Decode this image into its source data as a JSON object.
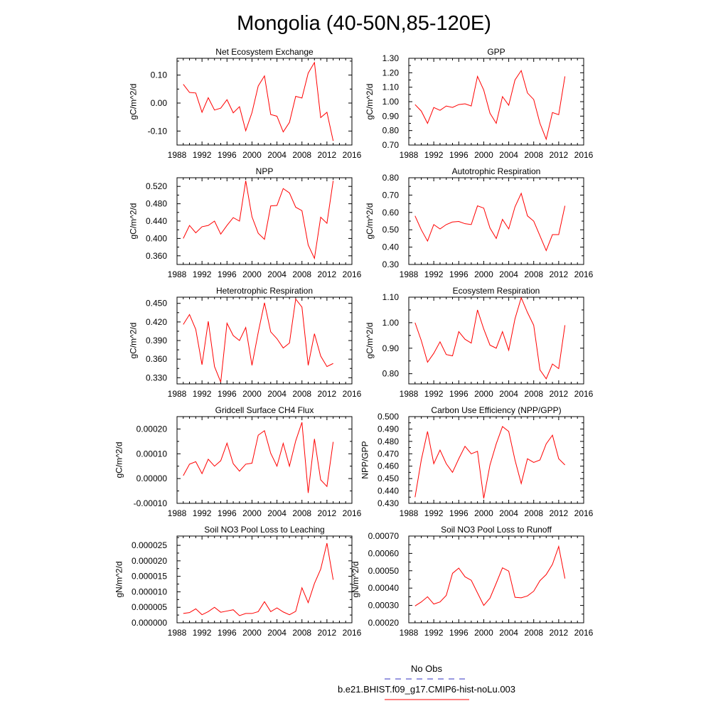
{
  "figure": {
    "title": "Mongolia (40-50N,85-120E)",
    "legend": [
      {
        "label": "No Obs",
        "color": "#3030c0",
        "dash": true
      },
      {
        "label": "b.e21.BHIST.f09_g17.CMIP6-hist-noLu.003",
        "color": "#ff0000",
        "dash": false
      }
    ]
  },
  "chart_data": [
    {
      "type": "line",
      "title": "Net Ecosystem Exchange",
      "ylabel": "gC/m^2/d",
      "xlim": [
        1988,
        2016
      ],
      "xticks": [
        "1988",
        "1992",
        "1996",
        "2000",
        "2004",
        "2008",
        "2012",
        "2016"
      ],
      "ylim": [
        -0.15,
        0.16
      ],
      "yticks": [
        "-0.10",
        "0.00",
        "0.10"
      ],
      "ytick_values": [
        -0.1,
        0.0,
        0.1
      ],
      "series": [
        {
          "color": "#ff0000",
          "x": [
            1989,
            1990,
            1991,
            1992,
            1993,
            1994,
            1995,
            1996,
            1997,
            1998,
            1999,
            2000,
            2001,
            2002,
            2003,
            2004,
            2005,
            2006,
            2007,
            2008,
            2009,
            2010,
            2011,
            2012,
            2013
          ],
          "values": [
            0.067,
            0.038,
            0.036,
            -0.033,
            0.019,
            -0.025,
            -0.018,
            0.012,
            -0.035,
            -0.013,
            -0.099,
            -0.034,
            0.061,
            0.097,
            -0.041,
            -0.047,
            -0.103,
            -0.069,
            0.024,
            0.018,
            0.107,
            0.145,
            -0.052,
            -0.033,
            -0.135
          ]
        }
      ]
    },
    {
      "type": "line",
      "title": "GPP",
      "ylabel": "gC/m^2/d",
      "xlim": [
        1988,
        2016
      ],
      "xticks": [
        "1988",
        "1992",
        "1996",
        "2000",
        "2004",
        "2008",
        "2012",
        "2016"
      ],
      "ylim": [
        0.7,
        1.3
      ],
      "yticks": [
        "0.70",
        "0.80",
        "0.90",
        "1.00",
        "1.10",
        "1.20",
        "1.30"
      ],
      "ytick_values": [
        0.7,
        0.8,
        0.9,
        1.0,
        1.1,
        1.2,
        1.3
      ],
      "series": [
        {
          "color": "#ff0000",
          "x": [
            1989,
            1990,
            1991,
            1992,
            1993,
            1994,
            1995,
            1996,
            1997,
            1998,
            1999,
            2000,
            2001,
            2002,
            2003,
            2004,
            2005,
            2006,
            2007,
            2008,
            2009,
            2010,
            2011,
            2012,
            2013
          ],
          "values": [
            0.98,
            0.935,
            0.85,
            0.96,
            0.94,
            0.97,
            0.96,
            0.98,
            0.985,
            0.97,
            1.175,
            1.08,
            0.92,
            0.85,
            1.035,
            0.975,
            1.15,
            1.215,
            1.06,
            1.015,
            0.85,
            0.74,
            0.925,
            0.91,
            1.175
          ]
        }
      ]
    },
    {
      "type": "line",
      "title": "NPP",
      "ylabel": "gC/m^2/d",
      "xlim": [
        1988,
        2016
      ],
      "xticks": [
        "1988",
        "1992",
        "1996",
        "2000",
        "2004",
        "2008",
        "2012",
        "2016"
      ],
      "ylim": [
        0.34,
        0.54
      ],
      "yticks": [
        "0.360",
        "0.400",
        "0.440",
        "0.480",
        "0.520"
      ],
      "ytick_values": [
        0.36,
        0.4,
        0.44,
        0.48,
        0.52
      ],
      "series": [
        {
          "color": "#ff0000",
          "x": [
            1989,
            1990,
            1991,
            1992,
            1993,
            1994,
            1995,
            1996,
            1997,
            1998,
            1999,
            2000,
            2001,
            2002,
            2003,
            2004,
            2005,
            2006,
            2007,
            2008,
            2009,
            2010,
            2011,
            2012,
            2013
          ],
          "values": [
            0.4,
            0.43,
            0.413,
            0.427,
            0.43,
            0.44,
            0.41,
            0.43,
            0.448,
            0.44,
            0.533,
            0.45,
            0.412,
            0.398,
            0.475,
            0.476,
            0.515,
            0.505,
            0.472,
            0.464,
            0.385,
            0.354,
            0.449,
            0.435,
            0.533
          ]
        }
      ]
    },
    {
      "type": "line",
      "title": "Autotrophic Respiration",
      "ylabel": "gC/m^2/d",
      "xlim": [
        1988,
        2016
      ],
      "xticks": [
        "1988",
        "1992",
        "1996",
        "2000",
        "2004",
        "2008",
        "2012",
        "2016"
      ],
      "ylim": [
        0.3,
        0.8
      ],
      "yticks": [
        "0.30",
        "0.40",
        "0.50",
        "0.60",
        "0.70",
        "0.80"
      ],
      "ytick_values": [
        0.3,
        0.4,
        0.5,
        0.6,
        0.7,
        0.8
      ],
      "series": [
        {
          "color": "#ff0000",
          "x": [
            1989,
            1990,
            1991,
            1992,
            1993,
            1994,
            1995,
            1996,
            1997,
            1998,
            1999,
            2000,
            2001,
            2002,
            2003,
            2004,
            2005,
            2006,
            2007,
            2008,
            2009,
            2010,
            2011,
            2012,
            2013
          ],
          "values": [
            0.58,
            0.5,
            0.435,
            0.53,
            0.505,
            0.53,
            0.545,
            0.548,
            0.535,
            0.53,
            0.638,
            0.625,
            0.51,
            0.45,
            0.56,
            0.505,
            0.632,
            0.71,
            0.58,
            0.55,
            0.465,
            0.38,
            0.472,
            0.472,
            0.638
          ]
        }
      ]
    },
    {
      "type": "line",
      "title": "Heterotrophic Respiration",
      "ylabel": "gC/m^2/d",
      "xlim": [
        1988,
        2016
      ],
      "xticks": [
        "1988",
        "1992",
        "1996",
        "2000",
        "2004",
        "2008",
        "2012",
        "2016"
      ],
      "ylim": [
        0.32,
        0.46
      ],
      "yticks": [
        "0.330",
        "0.360",
        "0.390",
        "0.420",
        "0.450"
      ],
      "ytick_values": [
        0.33,
        0.36,
        0.39,
        0.42,
        0.45
      ],
      "series": [
        {
          "color": "#ff0000",
          "x": [
            1989,
            1990,
            1991,
            1992,
            1993,
            1994,
            1995,
            1996,
            1997,
            1998,
            1999,
            2000,
            2001,
            2002,
            2003,
            2004,
            2005,
            2006,
            2007,
            2008,
            2009,
            2010,
            2011,
            2012,
            2013
          ],
          "values": [
            0.416,
            0.432,
            0.408,
            0.351,
            0.421,
            0.348,
            0.323,
            0.418,
            0.398,
            0.39,
            0.411,
            0.35,
            0.403,
            0.451,
            0.404,
            0.393,
            0.378,
            0.386,
            0.457,
            0.444,
            0.35,
            0.401,
            0.365,
            0.348,
            0.353
          ]
        }
      ]
    },
    {
      "type": "line",
      "title": "Ecosystem Respiration",
      "ylabel": "gC/m^2/d",
      "xlim": [
        1988,
        2016
      ],
      "xticks": [
        "1988",
        "1992",
        "1996",
        "2000",
        "2004",
        "2008",
        "2012",
        "2016"
      ],
      "ylim": [
        0.76,
        1.1
      ],
      "yticks": [
        "0.80",
        "0.90",
        "1.00",
        "1.10"
      ],
      "ytick_values": [
        0.8,
        0.9,
        1.0,
        1.1
      ],
      "series": [
        {
          "color": "#ff0000",
          "x": [
            1989,
            1990,
            1991,
            1992,
            1993,
            1994,
            1995,
            1996,
            1997,
            1998,
            1999,
            2000,
            2001,
            2002,
            2003,
            2004,
            2005,
            2006,
            2007,
            2008,
            2009,
            2010,
            2011,
            2012,
            2013
          ],
          "values": [
            1.0,
            0.93,
            0.845,
            0.88,
            0.925,
            0.875,
            0.87,
            0.965,
            0.935,
            0.92,
            1.05,
            0.975,
            0.912,
            0.9,
            0.965,
            0.892,
            1.015,
            1.098,
            1.04,
            0.99,
            0.815,
            0.78,
            0.838,
            0.82,
            0.99
          ]
        }
      ]
    },
    {
      "type": "line",
      "title": "Gridcell Surface CH4 Flux",
      "ylabel": "gC/m^2/d",
      "xlim": [
        1988,
        2016
      ],
      "xticks": [
        "1988",
        "1992",
        "1996",
        "2000",
        "2004",
        "2008",
        "2012",
        "2016"
      ],
      "ylim": [
        -0.0001,
        0.00025
      ],
      "yticks": [
        "-0.00010",
        "0.00000",
        "0.00010",
        "0.00020"
      ],
      "ytick_values": [
        -0.0001,
        0.0,
        0.0001,
        0.0002
      ],
      "series": [
        {
          "color": "#ff0000",
          "x": [
            1989,
            1990,
            1991,
            1992,
            1993,
            1994,
            1995,
            1996,
            1997,
            1998,
            1999,
            2000,
            2001,
            2002,
            2003,
            2004,
            2005,
            2006,
            2007,
            2008,
            2009,
            2010,
            2011,
            2012,
            2013
          ],
          "values": [
            1.2e-05,
            5.8e-05,
            6.8e-05,
            2e-05,
            7.8e-05,
            5e-05,
            7.2e-05,
            0.000143,
            6e-05,
            3e-05,
            5.8e-05,
            6.2e-05,
            0.000175,
            0.000193,
            0.000102,
            5e-05,
            0.000142,
            5e-05,
            0.000152,
            0.000227,
            -5.8e-05,
            0.00016,
            -5e-06,
            -3.2e-05,
            0.000148
          ]
        }
      ]
    },
    {
      "type": "line",
      "title": "Carbon Use Efficiency (NPP/GPP)",
      "ylabel": "NPP/GPP",
      "xlim": [
        1988,
        2016
      ],
      "xticks": [
        "1988",
        "1992",
        "1996",
        "2000",
        "2004",
        "2008",
        "2012",
        "2016"
      ],
      "ylim": [
        0.43,
        0.5
      ],
      "yticks": [
        "0.430",
        "0.440",
        "0.450",
        "0.460",
        "0.470",
        "0.480",
        "0.490",
        "0.500"
      ],
      "ytick_values": [
        0.43,
        0.44,
        0.45,
        0.46,
        0.47,
        0.48,
        0.49,
        0.5
      ],
      "series": [
        {
          "color": "#ff0000",
          "x": [
            1989,
            1990,
            1991,
            1992,
            1993,
            1994,
            1995,
            1996,
            1997,
            1998,
            1999,
            2000,
            2001,
            2002,
            2003,
            2004,
            2005,
            2006,
            2007,
            2008,
            2009,
            2010,
            2011,
            2012,
            2013
          ],
          "values": [
            0.435,
            0.465,
            0.488,
            0.462,
            0.473,
            0.462,
            0.455,
            0.466,
            0.476,
            0.47,
            0.472,
            0.434,
            0.461,
            0.478,
            0.492,
            0.488,
            0.465,
            0.446,
            0.466,
            0.463,
            0.465,
            0.478,
            0.485,
            0.466,
            0.461
          ]
        }
      ]
    },
    {
      "type": "line",
      "title": "Soil NO3 Pool Loss to Leaching",
      "ylabel": "gN/m^2/d",
      "xlim": [
        1988,
        2016
      ],
      "xticks": [
        "1988",
        "1992",
        "1996",
        "2000",
        "2004",
        "2008",
        "2012",
        "2016"
      ],
      "ylim": [
        0.0,
        2.8e-05
      ],
      "yticks": [
        "0.000000",
        "0.000005",
        "0.000010",
        "0.000015",
        "0.000020",
        "0.000025"
      ],
      "ytick_values": [
        0.0,
        5e-06,
        1e-05,
        1.5e-05,
        2e-05,
        2.5e-05
      ],
      "series": [
        {
          "color": "#ff0000",
          "x": [
            1989,
            1990,
            1991,
            1992,
            1993,
            1994,
            1995,
            1996,
            1997,
            1998,
            1999,
            2000,
            2001,
            2002,
            2003,
            2004,
            2005,
            2006,
            2007,
            2008,
            2009,
            2010,
            2011,
            2012,
            2013
          ],
          "values": [
            3e-06,
            3.3e-06,
            4.5e-06,
            2.6e-06,
            3.6e-06,
            5e-06,
            3.4e-06,
            3.8e-06,
            4.2e-06,
            2.3e-06,
            3e-06,
            3e-06,
            3.6e-06,
            6.8e-06,
            3.6e-06,
            4.8e-06,
            3.5e-06,
            2.6e-06,
            3.7e-06,
            1.13e-05,
            6.5e-06,
            1.27e-05,
            1.73e-05,
            2.57e-05,
            1.39e-05
          ]
        }
      ]
    },
    {
      "type": "line",
      "title": "Soil NO3 Pool Loss to Runoff",
      "ylabel": "gN/m^2/d",
      "xlim": [
        1988,
        2016
      ],
      "xticks": [
        "1988",
        "1992",
        "1996",
        "2000",
        "2004",
        "2008",
        "2012",
        "2016"
      ],
      "ylim": [
        0.0002,
        0.0007
      ],
      "yticks": [
        "0.00020",
        "0.00030",
        "0.00040",
        "0.00050",
        "0.00060",
        "0.00070"
      ],
      "ytick_values": [
        0.0002,
        0.0003,
        0.0004,
        0.0005,
        0.0006,
        0.0007
      ],
      "series": [
        {
          "color": "#ff0000",
          "x": [
            1989,
            1990,
            1991,
            1992,
            1993,
            1994,
            1995,
            1996,
            1997,
            1998,
            1999,
            2000,
            2001,
            2002,
            2003,
            2004,
            2005,
            2006,
            2007,
            2008,
            2009,
            2010,
            2011,
            2012,
            2013
          ],
          "values": [
            0.000297,
            0.00032,
            0.00035,
            0.000308,
            0.00032,
            0.000358,
            0.000485,
            0.000515,
            0.000465,
            0.000445,
            0.000372,
            0.0003,
            0.000342,
            0.000428,
            0.000517,
            0.000498,
            0.000347,
            0.000344,
            0.000355,
            0.000382,
            0.000443,
            0.000478,
            0.000537,
            0.00064,
            0.000455
          ]
        }
      ]
    }
  ]
}
